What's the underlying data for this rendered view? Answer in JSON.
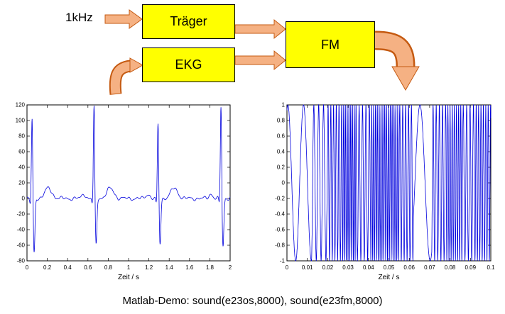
{
  "diagram": {
    "source_label": "1kHz",
    "traeger_label": "Träger",
    "ekg_label": "EKG",
    "fm_label": "FM",
    "colors": {
      "box_fill": "#ffff00",
      "box_stroke": "#000000",
      "arrow_fill": "#f5b183",
      "arrow_stroke": "#c55a11"
    }
  },
  "caption": "Matlab-Demo:  sound(e23os,8000), sound(e23fm,8000)",
  "chart_data": [
    {
      "id": "ekg",
      "type": "line",
      "title": "",
      "xlabel": "Zeit / s",
      "ylabel": "",
      "xlim": [
        0,
        2
      ],
      "ylim": [
        -80,
        120
      ],
      "grid": false,
      "line_color": "#0000dd",
      "xticks": {
        "values": [
          0,
          0.2,
          0.4,
          0.6,
          0.8,
          1,
          1.2,
          1.4,
          1.6,
          1.8,
          2
        ],
        "labels": [
          "0",
          "0.2",
          "0.4",
          "0.6",
          "0.8",
          "1",
          "1.2",
          "1.4",
          "1.6",
          "1.8",
          "2"
        ]
      },
      "yticks": {
        "values": [
          120,
          100,
          80,
          60,
          40,
          20,
          0,
          -20,
          -40,
          -60,
          -80
        ],
        "labels": [
          "120",
          "100",
          "80",
          "60",
          "40",
          "20",
          "0",
          "-20",
          "-40",
          "-60",
          "-80"
        ]
      },
      "series_desc": "EKG (ECG) trace: baseline near 0 with small noise, four heartbeats with sharp R spikes and deep S dips",
      "beats": [
        {
          "t": 0.05,
          "r": 103,
          "s": -70
        },
        {
          "t": 0.66,
          "r": 120,
          "s": -60
        },
        {
          "t": 1.29,
          "r": 97,
          "s": -58
        },
        {
          "t": 1.91,
          "r": 120,
          "s": -62
        }
      ]
    },
    {
      "id": "fm",
      "type": "line",
      "title": "",
      "xlabel": "Zeit / s",
      "ylabel": "",
      "xlim": [
        0,
        0.1
      ],
      "ylim": [
        -1,
        1
      ],
      "grid": false,
      "line_color": "#0000dd",
      "phase0": 1.2,
      "xticks": {
        "values": [
          0,
          0.01,
          0.02,
          0.03,
          0.04,
          0.05,
          0.06,
          0.07,
          0.08,
          0.09,
          0.1
        ],
        "labels": [
          "0",
          "0.01",
          "0.02",
          "0.03",
          "0.04",
          "0.05",
          "0.06",
          "0.07",
          "0.08",
          "0.09",
          "0.1"
        ]
      },
      "yticks": {
        "values": [
          1,
          0.8,
          0.6,
          0.4,
          0.2,
          0,
          -0.2,
          -0.4,
          -0.6,
          -0.8,
          -1
        ],
        "labels": [
          "1",
          "0.8",
          "0.6",
          "0.4",
          "0.2",
          "0",
          "-0.2",
          "-0.4",
          "-0.6",
          "-0.8",
          "-1"
        ]
      },
      "series_desc": "FM modulated 1 kHz-demo signal, amplitude +/-1, instantaneous frequency follows EKG: slow at start, dense bursts, slow gap near t=0.065 s",
      "freq_segments": [
        [
          0,
          0.012,
          130
        ],
        [
          0.012,
          0.02,
          420
        ],
        [
          0.02,
          0.027,
          750
        ],
        [
          0.027,
          0.034,
          1150
        ],
        [
          0.034,
          0.041,
          600
        ],
        [
          0.041,
          0.055,
          1100
        ],
        [
          0.055,
          0.062,
          700
        ],
        [
          0.062,
          0.071,
          100
        ],
        [
          0.071,
          0.078,
          650
        ],
        [
          0.078,
          0.086,
          950
        ],
        [
          0.086,
          0.092,
          600
        ],
        [
          0.092,
          0.1001,
          850
        ]
      ]
    }
  ]
}
